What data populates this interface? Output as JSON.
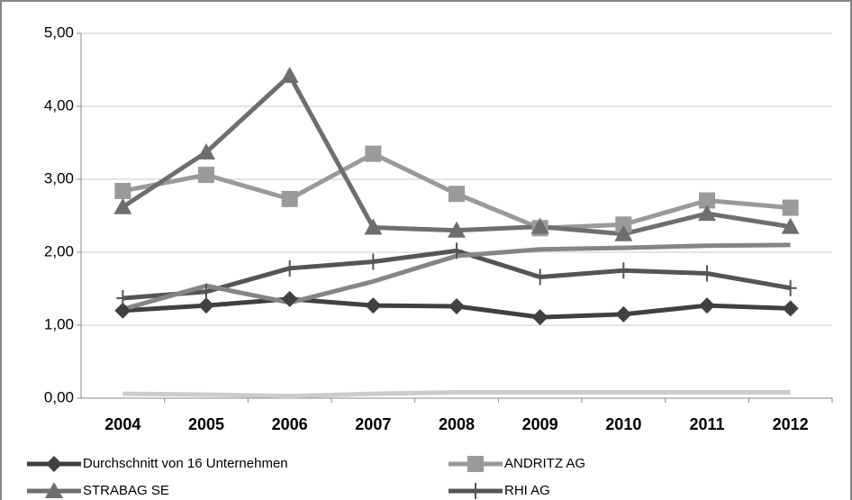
{
  "chart_data": {
    "type": "line",
    "categories": [
      "2004",
      "2005",
      "2006",
      "2007",
      "2008",
      "2009",
      "2010",
      "2011",
      "2012"
    ],
    "ylim": [
      0,
      5
    ],
    "yticks": [
      {
        "value": 0,
        "label": "0,00"
      },
      {
        "value": 1,
        "label": "1,00"
      },
      {
        "value": 2,
        "label": "2,00"
      },
      {
        "value": 3,
        "label": "3,00"
      },
      {
        "value": 4,
        "label": "4,00"
      },
      {
        "value": 5,
        "label": "5,00"
      }
    ],
    "grid": true,
    "legend": "bottom",
    "series": [
      {
        "name": "Durchschnitt von 16 Unternehmen",
        "color": "#404040",
        "marker": "diamond",
        "values": [
          1.2,
          1.27,
          1.36,
          1.27,
          1.26,
          1.11,
          1.15,
          1.27,
          1.23
        ]
      },
      {
        "name": "ANDRITZ AG",
        "color": "#9a9a9a",
        "marker": "square",
        "values": [
          2.84,
          3.06,
          2.73,
          3.35,
          2.8,
          2.33,
          2.38,
          2.71,
          2.61
        ]
      },
      {
        "name": "STRABAG SE",
        "color": "#6e6e6e",
        "marker": "triangle",
        "values": [
          2.62,
          3.37,
          4.42,
          2.34,
          2.3,
          2.35,
          2.25,
          2.53,
          2.35
        ]
      },
      {
        "name": "RHI AG",
        "color": "#555555",
        "marker": "plus",
        "values": [
          1.37,
          1.46,
          1.78,
          1.87,
          2.02,
          1.66,
          1.75,
          1.71,
          1.51
        ]
      },
      {
        "color": "#858585",
        "values": [
          1.22,
          1.54,
          1.31,
          1.6,
          1.95,
          2.04,
          2.06,
          2.09,
          2.1
        ]
      },
      {
        "color": "#cccccc",
        "values": [
          0.06,
          0.05,
          0.03,
          0.06,
          0.08,
          0.08,
          0.08,
          0.08,
          0.08
        ]
      }
    ]
  }
}
